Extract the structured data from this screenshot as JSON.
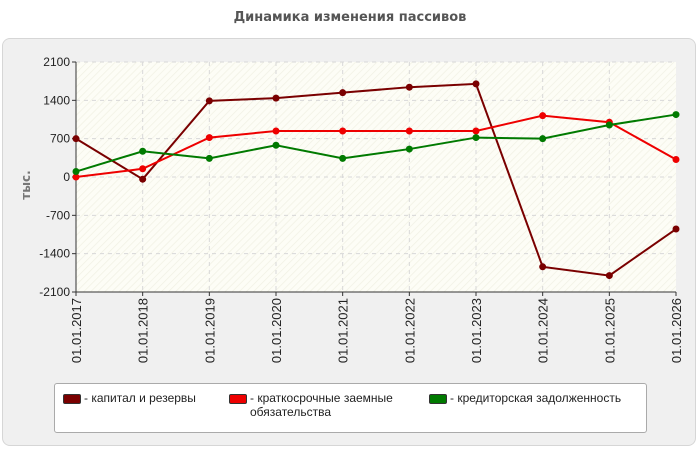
{
  "chart_data": {
    "type": "line",
    "title": "Динамика изменения пассивов",
    "ylabel": "тыс.",
    "xlabel": "",
    "ylim": [
      -2100,
      2100
    ],
    "y_ticks": [
      "2100",
      "1400",
      "700",
      "0",
      "-700",
      "-1400",
      "-2100"
    ],
    "y_tick_values": [
      2100,
      1400,
      700,
      0,
      -700,
      -1400,
      -2100
    ],
    "categories": [
      "01.01.2017",
      "01.01.2018",
      "01.01.2019",
      "01.01.2020",
      "01.01.2021",
      "01.01.2022",
      "01.01.2023",
      "01.01.2024",
      "01.01.2025",
      "01.01.2026"
    ],
    "grid": true,
    "legend_position": "bottom",
    "series": [
      {
        "name": "- капитал и резервы",
        "color": "#7a0000",
        "values": [
          700,
          -40,
          1390,
          1440,
          1540,
          1640,
          1700,
          -1640,
          -1800,
          -950
        ]
      },
      {
        "name": "- краткосрочные заемные\nобязательства",
        "color": "#ee0000",
        "values": [
          0,
          150,
          720,
          840,
          840,
          840,
          840,
          1120,
          1000,
          320
        ]
      },
      {
        "name": "- кредиторская задолженность",
        "color": "#007a00",
        "values": [
          100,
          470,
          340,
          580,
          340,
          510,
          720,
          700,
          950,
          1140
        ]
      }
    ]
  }
}
